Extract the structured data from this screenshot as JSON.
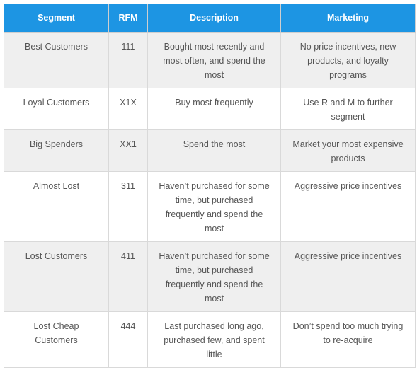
{
  "columns": {
    "segment": "Segment",
    "rfm": "RFM",
    "description": "Description",
    "marketing": "Marketing"
  },
  "rows": [
    {
      "segment": "Best Customers",
      "rfm": "111",
      "description": "Bought most recently and most often, and spend the most",
      "marketing": "No price incentives, new products, and loyalty programs"
    },
    {
      "segment": "Loyal Customers",
      "rfm": "X1X",
      "description": "Buy most frequently",
      "marketing": "Use R and M to further segment"
    },
    {
      "segment": "Big Spenders",
      "rfm": "XX1",
      "description": "Spend the most",
      "marketing": "Market your most expensive products"
    },
    {
      "segment": "Almost Lost",
      "rfm": "311",
      "description": "Haven’t purchased for some time, but purchased frequently and spend the most",
      "marketing": "Aggressive price incentives"
    },
    {
      "segment": "Lost Customers",
      "rfm": "411",
      "description": "Haven’t purchased for some time, but purchased frequently and spend the most",
      "marketing": "Aggressive price incentives"
    },
    {
      "segment": "Lost Cheap Customers",
      "rfm": "444",
      "description": "Last purchased long ago, purchased few, and spent little",
      "marketing": "Don’t spend too much trying to re-acquire"
    }
  ],
  "colors": {
    "header_bg": "#1d95e3",
    "header_text": "#ffffff",
    "row_alt_bg": "#efefef",
    "row_bg": "#ffffff",
    "cell_text": "#555555"
  }
}
